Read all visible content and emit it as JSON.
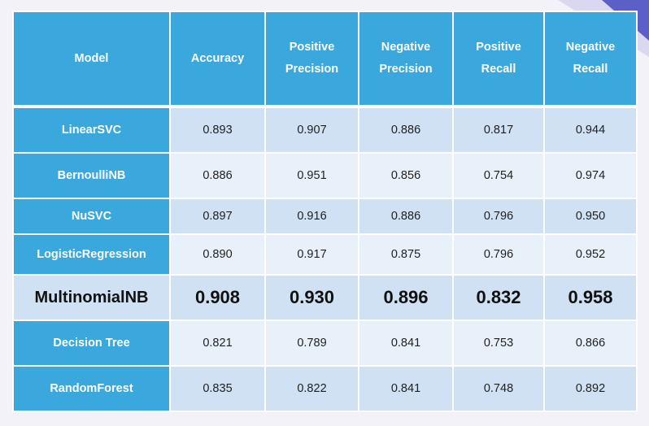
{
  "colors": {
    "header_bg": "#3aa8dc",
    "row_odd_bg": "#cfe1f2",
    "row_even_bg": "#e8f0f9",
    "page_bg": "#f3f2f8"
  },
  "table": {
    "headers": [
      {
        "line1": "Model",
        "line2": ""
      },
      {
        "line1": "Accuracy",
        "line2": ""
      },
      {
        "line1": "Positive",
        "line2": "Precision"
      },
      {
        "line1": "Negative",
        "line2": "Precision"
      },
      {
        "line1": "Positive",
        "line2": "Recall"
      },
      {
        "line1": "Negative",
        "line2": "Recall"
      }
    ],
    "rows": [
      {
        "model": "LinearSVC",
        "accuracy": "0.893",
        "pos_precision": "0.907",
        "neg_precision": "0.886",
        "pos_recall": "0.817",
        "neg_recall": "0.944"
      },
      {
        "model": "BernoulliNB",
        "accuracy": "0.886",
        "pos_precision": "0.951",
        "neg_precision": "0.856",
        "pos_recall": "0.754",
        "neg_recall": "0.974"
      },
      {
        "model": "NuSVC",
        "accuracy": "0.897",
        "pos_precision": "0.916",
        "neg_precision": "0.886",
        "pos_recall": "0.796",
        "neg_recall": "0.950"
      },
      {
        "model": "LogisticRegression",
        "accuracy": "0.890",
        "pos_precision": "0.917",
        "neg_precision": "0.875",
        "pos_recall": "0.796",
        "neg_recall": "0.952"
      },
      {
        "model": "MultinomialNB",
        "accuracy": "0.908",
        "pos_precision": "0.930",
        "neg_precision": "0.896",
        "pos_recall": "0.832",
        "neg_recall": "0.958"
      },
      {
        "model": "Decision Tree",
        "accuracy": "0.821",
        "pos_precision": "0.789",
        "neg_precision": "0.841",
        "pos_recall": "0.753",
        "neg_recall": "0.866"
      },
      {
        "model": "RandomForest",
        "accuracy": "0.835",
        "pos_precision": "0.822",
        "neg_precision": "0.841",
        "pos_recall": "0.748",
        "neg_recall": "0.892"
      }
    ]
  }
}
